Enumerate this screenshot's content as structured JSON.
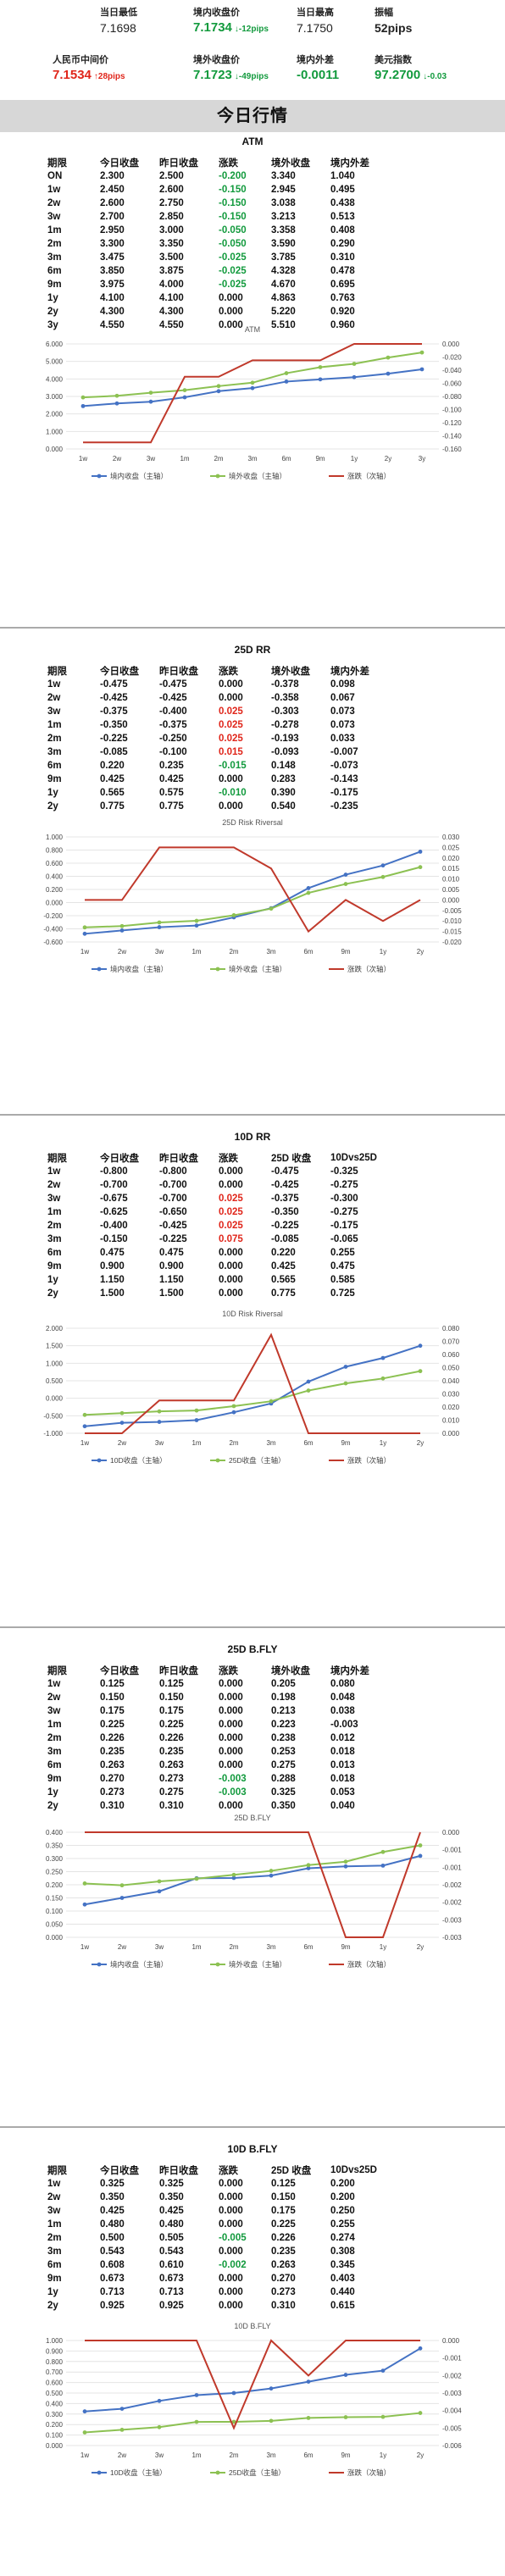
{
  "header": {
    "items": [
      {
        "label": "当日最低",
        "value": "7.1698",
        "color": "#222"
      },
      {
        "label": "境内收盘价",
        "value": "7.1734",
        "color": "green",
        "change": "↓-12pips",
        "change_color": "green"
      },
      {
        "label": "当日最高",
        "value": "7.1750",
        "color": "#222"
      },
      {
        "label": "振幅",
        "value": "52pips",
        "color": "#222"
      },
      {
        "label": "人民币中间价",
        "value": "7.1534",
        "color": "red",
        "change": "↑28pips",
        "change_color": "red"
      },
      {
        "label": "境外收盘价",
        "value": "7.1723",
        "color": "green",
        "change": "↓-49pips",
        "change_color": "green"
      },
      {
        "label": "境内外差",
        "value": "-0.0011",
        "color": "green"
      },
      {
        "label": "美元指数",
        "value": "97.2700",
        "color": "green",
        "change": "↓-0.03",
        "change_color": "green"
      }
    ]
  },
  "banner": "今日行情",
  "sections": [
    {
      "title": "ATM",
      "headers": [
        "期限",
        "今日收盘",
        "昨日收盘",
        "涨跌",
        "境外收盘",
        "境内外差"
      ],
      "rows": [
        [
          "ON",
          "2.300",
          "2.500",
          "-0.200",
          "3.340",
          "1.040"
        ],
        [
          "1w",
          "2.450",
          "2.600",
          "-0.150",
          "2.945",
          "0.495"
        ],
        [
          "2w",
          "2.600",
          "2.750",
          "-0.150",
          "3.038",
          "0.438"
        ],
        [
          "3w",
          "2.700",
          "2.850",
          "-0.150",
          "3.213",
          "0.513"
        ],
        [
          "1m",
          "2.950",
          "3.000",
          "-0.050",
          "3.358",
          "0.408"
        ],
        [
          "2m",
          "3.300",
          "3.350",
          "-0.050",
          "3.590",
          "0.290"
        ],
        [
          "3m",
          "3.475",
          "3.500",
          "-0.025",
          "3.785",
          "0.310"
        ],
        [
          "6m",
          "3.850",
          "3.875",
          "-0.025",
          "4.328",
          "0.478"
        ],
        [
          "9m",
          "3.975",
          "4.000",
          "-0.025",
          "4.670",
          "0.695"
        ],
        [
          "1y",
          "4.100",
          "4.100",
          "0.000",
          "4.863",
          "0.763"
        ],
        [
          "2y",
          "4.300",
          "4.300",
          "0.000",
          "5.220",
          "0.920"
        ],
        [
          "3y",
          "4.550",
          "4.550",
          "0.000",
          "5.510",
          "0.960"
        ]
      ],
      "chart_data": {
        "type": "line",
        "title": "ATM",
        "categories": [
          "1w",
          "2w",
          "3w",
          "1m",
          "2m",
          "3m",
          "6m",
          "9m",
          "1y",
          "2y",
          "3y"
        ],
        "series": [
          {
            "name": "境内收盘（主轴）",
            "axis": "left",
            "color": "#4472c4",
            "values": [
              2.45,
              2.6,
              2.7,
              2.95,
              3.3,
              3.475,
              3.85,
              3.975,
              4.1,
              4.3,
              4.55
            ]
          },
          {
            "name": "境外收盘（主轴）",
            "axis": "left",
            "color": "#8cc152",
            "values": [
              2.945,
              3.038,
              3.213,
              3.358,
              3.59,
              3.785,
              4.328,
              4.67,
              4.863,
              5.22,
              5.51
            ]
          },
          {
            "name": "涨跌（次轴）",
            "axis": "right",
            "color": "#c0392b",
            "values": [
              -0.15,
              -0.15,
              -0.15,
              -0.05,
              -0.05,
              -0.025,
              -0.025,
              -0.025,
              0,
              0,
              0
            ]
          }
        ],
        "ylim": [
          0,
          6
        ],
        "yticks": [
          "0.000",
          "1.000",
          "2.000",
          "3.000",
          "4.000",
          "5.000",
          "6.000"
        ],
        "y2lim": [
          -0.16,
          0
        ],
        "y2ticks": [
          "0.000",
          "-0.020",
          "-0.040",
          "-0.060",
          "-0.080",
          "-0.100",
          "-0.120",
          "-0.140",
          "-0.160"
        ]
      }
    },
    {
      "title": "25D RR",
      "headers": [
        "期限",
        "今日收盘",
        "昨日收盘",
        "涨跌",
        "境外收盘",
        "境内外差"
      ],
      "rows": [
        [
          "1w",
          "-0.475",
          "-0.475",
          "0.000",
          "-0.378",
          "0.098"
        ],
        [
          "2w",
          "-0.425",
          "-0.425",
          "0.000",
          "-0.358",
          "0.067"
        ],
        [
          "3w",
          "-0.375",
          "-0.400",
          "0.025",
          "-0.303",
          "0.073"
        ],
        [
          "1m",
          "-0.350",
          "-0.375",
          "0.025",
          "-0.278",
          "0.073"
        ],
        [
          "2m",
          "-0.225",
          "-0.250",
          "0.025",
          "-0.193",
          "0.033"
        ],
        [
          "3m",
          "-0.085",
          "-0.100",
          "0.015",
          "-0.093",
          "-0.007"
        ],
        [
          "6m",
          "0.220",
          "0.235",
          "-0.015",
          "0.148",
          "-0.073"
        ],
        [
          "9m",
          "0.425",
          "0.425",
          "0.000",
          "0.283",
          "-0.143"
        ],
        [
          "1y",
          "0.565",
          "0.575",
          "-0.010",
          "0.390",
          "-0.175"
        ],
        [
          "2y",
          "0.775",
          "0.775",
          "0.000",
          "0.540",
          "-0.235"
        ]
      ],
      "chart_data": {
        "type": "line",
        "title": "25D Risk Riversal",
        "categories": [
          "1w",
          "2w",
          "3w",
          "1m",
          "2m",
          "3m",
          "6m",
          "9m",
          "1y",
          "2y"
        ],
        "series": [
          {
            "name": "境内收盘（主轴）",
            "axis": "left",
            "color": "#4472c4",
            "values": [
              -0.475,
              -0.425,
              -0.375,
              -0.35,
              -0.225,
              -0.085,
              0.22,
              0.425,
              0.565,
              0.775
            ]
          },
          {
            "name": "境外收盘（主轴）",
            "axis": "left",
            "color": "#8cc152",
            "values": [
              -0.378,
              -0.358,
              -0.303,
              -0.278,
              -0.193,
              -0.093,
              0.148,
              0.283,
              0.39,
              0.54
            ]
          },
          {
            "name": "涨跌（次轴）",
            "axis": "right",
            "color": "#c0392b",
            "values": [
              0,
              0,
              0.025,
              0.025,
              0.025,
              0.015,
              -0.015,
              0,
              -0.01,
              0
            ]
          }
        ],
        "ylim": [
          -0.6,
          1
        ],
        "yticks": [
          "-0.600",
          "-0.400",
          "-0.200",
          "0.000",
          "0.200",
          "0.400",
          "0.600",
          "0.800",
          "1.000"
        ],
        "y2lim": [
          -0.02,
          0.03
        ],
        "y2ticks": [
          "0.030",
          "0.025",
          "0.020",
          "0.015",
          "0.010",
          "0.005",
          "0.000",
          "-0.005",
          "-0.010",
          "-0.015",
          "-0.020"
        ]
      }
    },
    {
      "title": "10D RR",
      "headers": [
        "期限",
        "今日收盘",
        "昨日收盘",
        "涨跌",
        "25D 收盘",
        "10Dvs25D"
      ],
      "rows": [
        [
          "1w",
          "-0.800",
          "-0.800",
          "0.000",
          "-0.475",
          "-0.325"
        ],
        [
          "2w",
          "-0.700",
          "-0.700",
          "0.000",
          "-0.425",
          "-0.275"
        ],
        [
          "3w",
          "-0.675",
          "-0.700",
          "0.025",
          "-0.375",
          "-0.300"
        ],
        [
          "1m",
          "-0.625",
          "-0.650",
          "0.025",
          "-0.350",
          "-0.275"
        ],
        [
          "2m",
          "-0.400",
          "-0.425",
          "0.025",
          "-0.225",
          "-0.175"
        ],
        [
          "3m",
          "-0.150",
          "-0.225",
          "0.075",
          "-0.085",
          "-0.065"
        ],
        [
          "6m",
          "0.475",
          "0.475",
          "0.000",
          "0.220",
          "0.255"
        ],
        [
          "9m",
          "0.900",
          "0.900",
          "0.000",
          "0.425",
          "0.475"
        ],
        [
          "1y",
          "1.150",
          "1.150",
          "0.000",
          "0.565",
          "0.585"
        ],
        [
          "2y",
          "1.500",
          "1.500",
          "0.000",
          "0.775",
          "0.725"
        ]
      ],
      "chart_data": {
        "type": "line",
        "title": "10D Risk Riversal",
        "categories": [
          "1w",
          "2w",
          "3w",
          "1m",
          "2m",
          "3m",
          "6m",
          "9m",
          "1y",
          "2y"
        ],
        "series": [
          {
            "name": "10D收盘（主轴）",
            "axis": "left",
            "color": "#4472c4",
            "values": [
              -0.8,
              -0.7,
              -0.675,
              -0.625,
              -0.4,
              -0.15,
              0.475,
              0.9,
              1.15,
              1.5
            ]
          },
          {
            "name": "25D收盘（主轴）",
            "axis": "left",
            "color": "#8cc152",
            "values": [
              -0.475,
              -0.425,
              -0.375,
              -0.35,
              -0.225,
              -0.085,
              0.22,
              0.425,
              0.565,
              0.775
            ]
          },
          {
            "name": "涨跌（次轴）",
            "axis": "right",
            "color": "#c0392b",
            "values": [
              0,
              0,
              0.025,
              0.025,
              0.025,
              0.075,
              0,
              0,
              0,
              0
            ]
          }
        ],
        "ylim": [
          -1,
          2
        ],
        "yticks": [
          "-1.000",
          "-0.500",
          "0.000",
          "0.500",
          "1.000",
          "1.500",
          "2.000"
        ],
        "y2lim": [
          0,
          0.08
        ],
        "y2ticks": [
          "0.080",
          "0.070",
          "0.060",
          "0.050",
          "0.040",
          "0.030",
          "0.020",
          "0.010",
          "0.000"
        ]
      }
    },
    {
      "title": "25D B.FLY",
      "headers": [
        "期限",
        "今日收盘",
        "昨日收盘",
        "涨跌",
        "境外收盘",
        "境内外差"
      ],
      "rows": [
        [
          "1w",
          "0.125",
          "0.125",
          "0.000",
          "0.205",
          "0.080"
        ],
        [
          "2w",
          "0.150",
          "0.150",
          "0.000",
          "0.198",
          "0.048"
        ],
        [
          "3w",
          "0.175",
          "0.175",
          "0.000",
          "0.213",
          "0.038"
        ],
        [
          "1m",
          "0.225",
          "0.225",
          "0.000",
          "0.223",
          "-0.003"
        ],
        [
          "2m",
          "0.226",
          "0.226",
          "0.000",
          "0.238",
          "0.012"
        ],
        [
          "3m",
          "0.235",
          "0.235",
          "0.000",
          "0.253",
          "0.018"
        ],
        [
          "6m",
          "0.263",
          "0.263",
          "0.000",
          "0.275",
          "0.013"
        ],
        [
          "9m",
          "0.270",
          "0.273",
          "-0.003",
          "0.288",
          "0.018"
        ],
        [
          "1y",
          "0.273",
          "0.275",
          "-0.003",
          "0.325",
          "0.053"
        ],
        [
          "2y",
          "0.310",
          "0.310",
          "0.000",
          "0.350",
          "0.040"
        ]
      ],
      "chart_data": {
        "type": "line",
        "title": "25D B.FLY",
        "categories": [
          "1w",
          "2w",
          "3w",
          "1m",
          "2m",
          "3m",
          "6m",
          "9m",
          "1y",
          "2y"
        ],
        "series": [
          {
            "name": "境内收盘（主轴）",
            "axis": "left",
            "color": "#4472c4",
            "values": [
              0.125,
              0.15,
              0.175,
              0.225,
              0.226,
              0.235,
              0.263,
              0.27,
              0.273,
              0.31
            ]
          },
          {
            "name": "境外收盘（主轴）",
            "axis": "left",
            "color": "#8cc152",
            "values": [
              0.205,
              0.198,
              0.213,
              0.223,
              0.238,
              0.253,
              0.275,
              0.288,
              0.325,
              0.35
            ]
          },
          {
            "name": "涨跌（次轴）",
            "axis": "right",
            "color": "#c0392b",
            "values": [
              0,
              0,
              0,
              0,
              0,
              0,
              0,
              -0.003,
              -0.003,
              0
            ]
          }
        ],
        "ylim": [
          0,
          0.4
        ],
        "yticks": [
          "0.000",
          "0.050",
          "0.100",
          "0.150",
          "0.200",
          "0.250",
          "0.300",
          "0.350",
          "0.400"
        ],
        "y2lim": [
          -0.003,
          0
        ],
        "y2ticks": [
          "0.000",
          "-0.001",
          "-0.001",
          "-0.002",
          "-0.002",
          "-0.003",
          "-0.003"
        ]
      }
    },
    {
      "title": "10D B.FLY",
      "headers": [
        "期限",
        "今日收盘",
        "昨日收盘",
        "涨跌",
        "25D 收盘",
        "10Dvs25D"
      ],
      "rows": [
        [
          "1w",
          "0.325",
          "0.325",
          "0.000",
          "0.125",
          "0.200"
        ],
        [
          "2w",
          "0.350",
          "0.350",
          "0.000",
          "0.150",
          "0.200"
        ],
        [
          "3w",
          "0.425",
          "0.425",
          "0.000",
          "0.175",
          "0.250"
        ],
        [
          "1m",
          "0.480",
          "0.480",
          "0.000",
          "0.225",
          "0.255"
        ],
        [
          "2m",
          "0.500",
          "0.505",
          "-0.005",
          "0.226",
          "0.274"
        ],
        [
          "3m",
          "0.543",
          "0.543",
          "0.000",
          "0.235",
          "0.308"
        ],
        [
          "6m",
          "0.608",
          "0.610",
          "-0.002",
          "0.263",
          "0.345"
        ],
        [
          "9m",
          "0.673",
          "0.673",
          "0.000",
          "0.270",
          "0.403"
        ],
        [
          "1y",
          "0.713",
          "0.713",
          "0.000",
          "0.273",
          "0.440"
        ],
        [
          "2y",
          "0.925",
          "0.925",
          "0.000",
          "0.310",
          "0.615"
        ]
      ],
      "chart_data": {
        "type": "line",
        "title": "10D B.FLY",
        "categories": [
          "1w",
          "2w",
          "3w",
          "1m",
          "2m",
          "3m",
          "6m",
          "9m",
          "1y",
          "2y"
        ],
        "series": [
          {
            "name": "10D收盘（主轴）",
            "axis": "left",
            "color": "#4472c4",
            "values": [
              0.325,
              0.35,
              0.425,
              0.48,
              0.5,
              0.543,
              0.608,
              0.673,
              0.713,
              0.925
            ]
          },
          {
            "name": "25D收盘（主轴）",
            "axis": "left",
            "color": "#8cc152",
            "values": [
              0.125,
              0.15,
              0.175,
              0.225,
              0.226,
              0.235,
              0.263,
              0.27,
              0.273,
              0.31
            ]
          },
          {
            "name": "涨跌（次轴）",
            "axis": "right",
            "color": "#c0392b",
            "values": [
              0,
              0,
              0,
              0,
              -0.005,
              0,
              -0.002,
              0,
              0,
              0
            ]
          }
        ],
        "ylim": [
          0,
          1
        ],
        "yticks": [
          "0.000",
          "0.100",
          "0.200",
          "0.300",
          "0.400",
          "0.500",
          "0.600",
          "0.700",
          "0.800",
          "0.900",
          "1.000"
        ],
        "y2lim": [
          -0.006,
          0
        ],
        "y2ticks": [
          "0.000",
          "-0.001",
          "-0.002",
          "-0.003",
          "-0.004",
          "-0.005",
          "-0.006"
        ]
      }
    }
  ]
}
